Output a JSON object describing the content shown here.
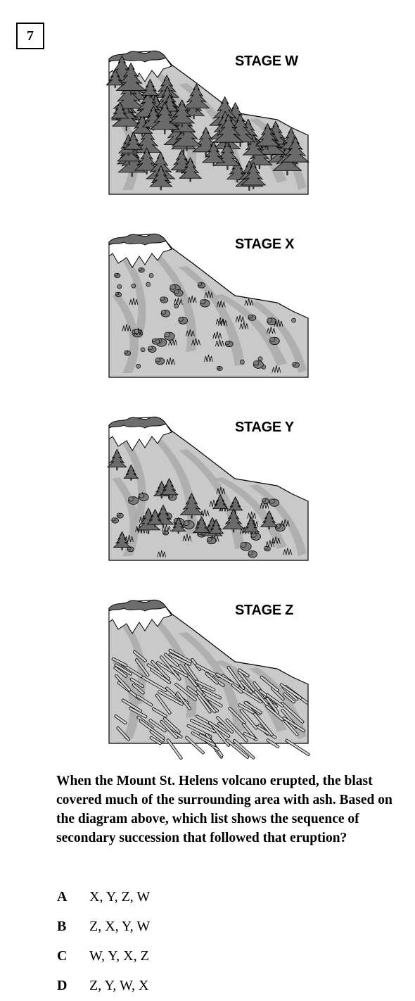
{
  "question_number": "7",
  "stages": [
    {
      "id": "W",
      "label": "STAGE W"
    },
    {
      "id": "X",
      "label": "STAGE X"
    },
    {
      "id": "Y",
      "label": "STAGE Y"
    },
    {
      "id": "Z",
      "label": "STAGE Z"
    }
  ],
  "question_text": "When the Mount St. Helens volcano erupted, the blast covered much of the surrounding area with ash. Based on the diagram above, which list shows the sequence of secondary succession that followed that eruption?",
  "choices": [
    {
      "letter": "A",
      "text": "X, Y, Z, W"
    },
    {
      "letter": "B",
      "text": "Z, X, Y, W"
    },
    {
      "letter": "C",
      "text": "W, Y, X, Z"
    },
    {
      "letter": "D",
      "text": "Z, Y, W, X"
    }
  ],
  "colors": {
    "mountain": "#c9c9c9",
    "streak": "#a9a9a9",
    "snow": "#ffffff",
    "peak": "#6d6d6d",
    "tree": "#6a6a6a",
    "shrub": "#7b7b7b",
    "log": "#d2d2d2",
    "outline": "#000000"
  }
}
